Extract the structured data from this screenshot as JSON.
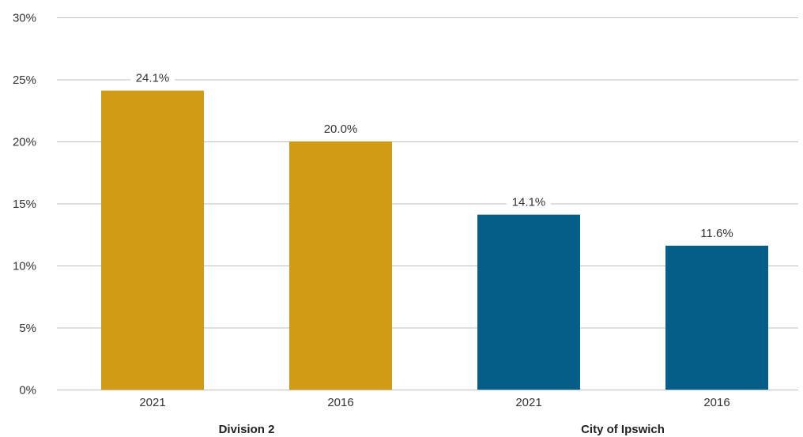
{
  "chart_data": {
    "type": "bar",
    "title": "",
    "xlabel": "",
    "ylabel": "",
    "ylim": [
      0,
      30
    ],
    "y_ticks": [
      0,
      5,
      10,
      15,
      20,
      25,
      30
    ],
    "y_tick_format": "percent",
    "grid": true,
    "legend": "none",
    "groups": [
      {
        "name": "Division 2",
        "color": "#D09C16",
        "bars": [
          {
            "category": "2021",
            "value": 24.1,
            "label": "24.1%"
          },
          {
            "category": "2016",
            "value": 20.0,
            "label": "20.0%"
          }
        ]
      },
      {
        "name": "City of Ipswich",
        "color": "#045E87",
        "bars": [
          {
            "category": "2021",
            "value": 14.1,
            "label": "14.1%"
          },
          {
            "category": "2016",
            "value": 11.6,
            "label": "11.6%"
          }
        ]
      }
    ]
  }
}
